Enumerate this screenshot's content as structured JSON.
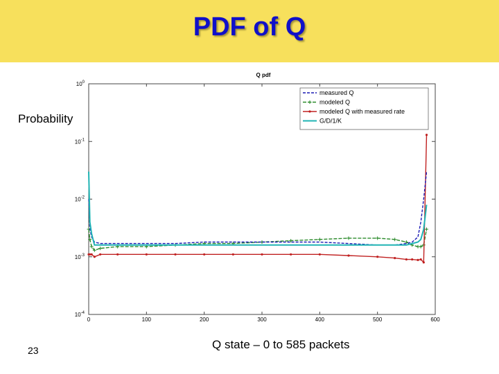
{
  "slide": {
    "title": "PDF of Q",
    "ylabel": "Probability",
    "xcaption": "Q state – 0 to 585 packets",
    "page_number": "23",
    "title_color": "#1010c8",
    "band_color": "#f7e05c"
  },
  "chart_data": {
    "type": "line",
    "title": "Q pdf",
    "xlabel": "",
    "ylabel": "",
    "xlim": [
      0,
      600
    ],
    "ylim": [
      0.0001,
      1
    ],
    "yscale": "log",
    "xticks": [
      0,
      100,
      200,
      300,
      400,
      500,
      600
    ],
    "yticks": [
      {
        "value": 1,
        "base": "10",
        "exp": "0"
      },
      {
        "value": 0.1,
        "base": "10",
        "exp": "-1"
      },
      {
        "value": 0.01,
        "base": "10",
        "exp": "-2"
      },
      {
        "value": 0.001,
        "base": "10",
        "exp": "-3"
      },
      {
        "value": 0.0001,
        "base": "10",
        "exp": "-4"
      }
    ],
    "grid": false,
    "legend_position": "top-right",
    "x": [
      0,
      2,
      5,
      10,
      20,
      50,
      100,
      150,
      200,
      250,
      300,
      350,
      400,
      450,
      500,
      530,
      550,
      560,
      570,
      575,
      580,
      585
    ],
    "series": [
      {
        "name": "measured Q",
        "color": "#1a1ab4",
        "dash": "4,2",
        "marker": "none",
        "values": [
          0.01,
          0.003,
          0.0022,
          0.0018,
          0.0017,
          0.0017,
          0.0017,
          0.0017,
          0.0018,
          0.0018,
          0.0018,
          0.0018,
          0.0018,
          0.0017,
          0.0016,
          0.0016,
          0.0017,
          0.0018,
          0.0022,
          0.004,
          0.01,
          0.03
        ]
      },
      {
        "name": "modeled Q",
        "color": "#2a8a2a",
        "dash": "5,2",
        "marker": "plus",
        "values": [
          0.003,
          0.002,
          0.0015,
          0.0013,
          0.0014,
          0.0015,
          0.0015,
          0.0016,
          0.0017,
          0.0017,
          0.0018,
          0.0019,
          0.002,
          0.0021,
          0.0021,
          0.002,
          0.0018,
          0.0016,
          0.0015,
          0.0015,
          0.0016,
          0.003
        ]
      },
      {
        "name": "modeled Q with measured rate",
        "color": "#c02020",
        "dash": "",
        "marker": "dot",
        "values": [
          0.0011,
          0.0011,
          0.0011,
          0.001,
          0.0011,
          0.0011,
          0.0011,
          0.0011,
          0.0011,
          0.0011,
          0.0011,
          0.0011,
          0.0011,
          0.00105,
          0.001,
          0.00095,
          0.0009,
          0.0009,
          0.00088,
          0.0009,
          0.0008,
          0.13
        ]
      },
      {
        "name": "G/D/1/K",
        "color": "#20b4b4",
        "dash": "",
        "marker": "none",
        "values": [
          0.03,
          0.004,
          0.0025,
          0.0016,
          0.0016,
          0.0016,
          0.0016,
          0.0016,
          0.0016,
          0.0016,
          0.0016,
          0.0016,
          0.0016,
          0.0016,
          0.0016,
          0.0016,
          0.0016,
          0.0017,
          0.0018,
          0.002,
          0.003,
          0.008
        ]
      }
    ]
  }
}
